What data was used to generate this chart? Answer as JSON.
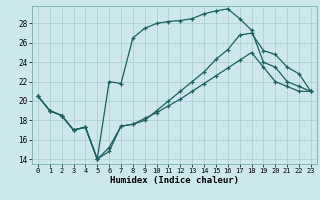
{
  "xlabel": "Humidex (Indice chaleur)",
  "bg_color": "#cce8ec",
  "grid_color": "#aacccc",
  "line_color": "#1a6060",
  "xlim": [
    -0.5,
    23.5
  ],
  "ylim": [
    13.5,
    29.8
  ],
  "xticks": [
    0,
    1,
    2,
    3,
    4,
    5,
    6,
    7,
    8,
    9,
    10,
    11,
    12,
    13,
    14,
    15,
    16,
    17,
    18,
    19,
    20,
    21,
    22,
    23
  ],
  "yticks": [
    14,
    16,
    18,
    20,
    22,
    24,
    26,
    28
  ],
  "line1_x": [
    0,
    1,
    2,
    3,
    4,
    5,
    6,
    7,
    8,
    9,
    10,
    11,
    12,
    13,
    14,
    15,
    16,
    17,
    18,
    19,
    20,
    21,
    22,
    23
  ],
  "line1_y": [
    20.5,
    19.0,
    18.5,
    17.0,
    17.3,
    14.0,
    15.2,
    17.4,
    17.6,
    18.2,
    18.8,
    19.5,
    20.2,
    21.0,
    21.8,
    22.6,
    23.4,
    24.2,
    25.0,
    23.5,
    22.0,
    21.5,
    21.0,
    21.0
  ],
  "line2_x": [
    0,
    1,
    2,
    3,
    4,
    5,
    6,
    7,
    8,
    9,
    10,
    11,
    12,
    13,
    14,
    15,
    16,
    17,
    18,
    19,
    20,
    21,
    22,
    23
  ],
  "line2_y": [
    20.5,
    19.0,
    18.5,
    17.0,
    17.3,
    14.0,
    22.0,
    21.8,
    26.5,
    27.5,
    28.0,
    28.2,
    28.3,
    28.5,
    29.0,
    29.3,
    29.5,
    28.5,
    27.3,
    24.0,
    23.5,
    22.0,
    21.5,
    21.0
  ],
  "line3_x": [
    0,
    1,
    2,
    3,
    4,
    5,
    6,
    7,
    8,
    9,
    10,
    11,
    12,
    13,
    14,
    15,
    16,
    17,
    18,
    19,
    20,
    21,
    22,
    23
  ],
  "line3_y": [
    20.5,
    19.0,
    18.5,
    17.0,
    17.3,
    14.0,
    14.8,
    17.4,
    17.6,
    18.0,
    19.0,
    20.0,
    21.0,
    22.0,
    23.0,
    24.3,
    25.3,
    26.8,
    27.0,
    25.2,
    24.8,
    23.5,
    22.8,
    21.0
  ]
}
